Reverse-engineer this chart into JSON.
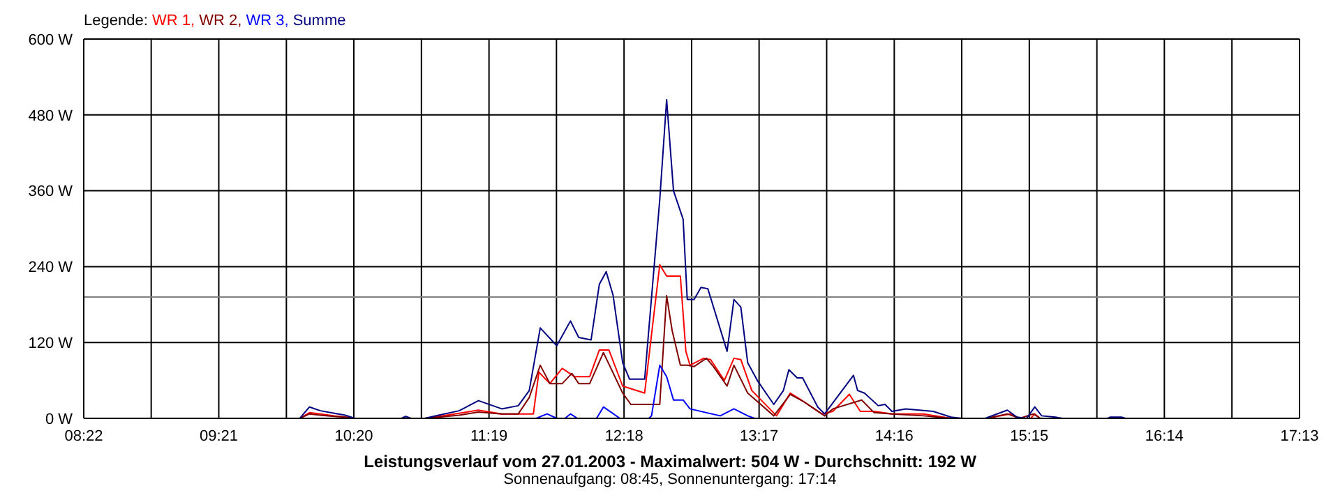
{
  "chart_data": {
    "type": "line",
    "title": "Leistungsverlauf vom 27.01.2003 - Maximalwert: 504 W - Durchschnitt: 192 W",
    "subtitle": "Sonnenaufgang: 08:45, Sonnenuntergang: 17:14",
    "legend_title": "Legende:",
    "legend": "top left",
    "grid": true,
    "marker": "none",
    "line_style": "solid",
    "xlim": [
      8.367,
      17.217
    ],
    "xticks": [
      {
        "value": 8.367,
        "label": "08:22"
      },
      {
        "value": 8.858,
        "label": null
      },
      {
        "value": 9.35,
        "label": "09:21"
      },
      {
        "value": 9.842,
        "label": null
      },
      {
        "value": 10.333,
        "label": "10:20"
      },
      {
        "value": 10.825,
        "label": null
      },
      {
        "value": 11.317,
        "label": "11:19"
      },
      {
        "value": 11.808,
        "label": null
      },
      {
        "value": 12.3,
        "label": "12:18"
      },
      {
        "value": 12.792,
        "label": null
      },
      {
        "value": 13.283,
        "label": "13:17"
      },
      {
        "value": 13.775,
        "label": null
      },
      {
        "value": 14.267,
        "label": "14:16"
      },
      {
        "value": 14.758,
        "label": null
      },
      {
        "value": 15.25,
        "label": "15:15"
      },
      {
        "value": 15.742,
        "label": null
      },
      {
        "value": 16.233,
        "label": "16:14"
      },
      {
        "value": 16.725,
        "label": null
      },
      {
        "value": 17.217,
        "label": "17:13"
      }
    ],
    "ylim": [
      0,
      600
    ],
    "yticks": [
      {
        "value": 0,
        "label": "0 W"
      },
      {
        "value": 120,
        "label": "120 W"
      },
      {
        "value": 240,
        "label": "240 W"
      },
      {
        "value": 360,
        "label": "360 W"
      },
      {
        "value": 480,
        "label": "480 W"
      },
      {
        "value": 600,
        "label": "600 W"
      }
    ],
    "ref_lines": [
      {
        "axis": "y",
        "value": 192,
        "color": "#808080"
      }
    ],
    "series": [
      {
        "name": "WR 1,",
        "color": "#ff0000",
        "x": [
          9.84,
          9.94,
          10.01,
          10.09,
          10.19,
          10.27,
          10.34,
          10.85,
          10.95,
          11.1,
          11.24,
          11.41,
          11.64,
          11.68,
          11.76,
          11.85,
          11.94,
          12.05,
          12.12,
          12.19,
          12.29,
          12.45,
          12.56,
          12.61,
          12.71,
          12.75,
          12.78,
          12.88,
          12.93,
          13.03,
          13.1,
          13.15,
          13.23,
          13.41,
          13.51,
          13.59,
          13.74,
          13.82,
          13.94,
          14.02,
          14.12,
          14.25,
          14.48,
          14.68,
          14.94,
          15.11,
          15.18,
          15.26,
          15.29,
          15.33
        ],
        "values": [
          0,
          0,
          9,
          7,
          4,
          2,
          0,
          0,
          3,
          8,
          13,
          7,
          7,
          73,
          55,
          79,
          66,
          66,
          108,
          108,
          51,
          40,
          243,
          225,
          225,
          106,
          84,
          95,
          93,
          60,
          95,
          93,
          44,
          4,
          40,
          29,
          7,
          11,
          38,
          11,
          11,
          7,
          7,
          0,
          0,
          7,
          0,
          0,
          7,
          0
        ]
      },
      {
        "name": "WR 2,",
        "color": "#800000",
        "x": [
          9.84,
          9.94,
          10.01,
          10.09,
          10.19,
          10.27,
          10.34,
          10.85,
          10.95,
          11.1,
          11.24,
          11.41,
          11.53,
          11.61,
          11.69,
          11.76,
          11.85,
          11.92,
          11.97,
          12.05,
          12.15,
          12.29,
          12.35,
          12.56,
          12.61,
          12.65,
          12.71,
          12.76,
          12.81,
          12.9,
          12.95,
          13.05,
          13.1,
          13.2,
          13.39,
          13.51,
          13.61,
          13.76,
          13.82,
          14.03,
          14.12,
          14.25,
          14.48,
          14.68,
          14.94,
          15.09,
          15.18,
          15.28,
          15.33
        ],
        "values": [
          0,
          0,
          7,
          5,
          3,
          2,
          0,
          0,
          2,
          5,
          10,
          7,
          7,
          33,
          84,
          55,
          55,
          71,
          55,
          55,
          104,
          40,
          22,
          22,
          194,
          139,
          84,
          84,
          82,
          95,
          82,
          51,
          84,
          40,
          4,
          38,
          26,
          4,
          15,
          29,
          9,
          7,
          4,
          0,
          0,
          7,
          0,
          7,
          0
        ]
      },
      {
        "name": "WR 3,",
        "color": "#0000ff",
        "x": [
          11.66,
          11.74,
          11.81,
          11.87,
          11.91,
          11.96,
          12.1,
          12.15,
          12.27,
          12.48,
          12.5,
          12.56,
          12.61,
          12.66,
          12.73,
          12.78,
          13.0,
          13.1,
          13.2,
          13.25
        ],
        "values": [
          0,
          7,
          0,
          0,
          7,
          0,
          0,
          18,
          0,
          0,
          4,
          84,
          66,
          29,
          29,
          15,
          4,
          15,
          4,
          0
        ]
      },
      {
        "name": "Summe",
        "color": "#000080",
        "x": [
          9.84,
          9.94,
          10.01,
          10.09,
          10.19,
          10.27,
          10.34,
          10.68,
          10.71,
          10.75,
          10.85,
          10.95,
          11.1,
          11.24,
          11.41,
          11.53,
          11.61,
          11.69,
          11.81,
          11.91,
          11.97,
          12.06,
          12.12,
          12.17,
          12.22,
          12.29,
          12.34,
          12.45,
          12.56,
          12.61,
          12.66,
          12.73,
          12.76,
          12.81,
          12.86,
          12.91,
          13.05,
          13.1,
          13.15,
          13.2,
          13.27,
          13.39,
          13.46,
          13.5,
          13.56,
          13.6,
          13.71,
          13.76,
          13.97,
          14.0,
          14.05,
          14.15,
          14.2,
          14.25,
          14.35,
          14.55,
          14.68,
          14.76,
          14.93,
          15.09,
          15.16,
          15.23,
          15.29,
          15.34,
          15.44,
          15.49,
          15.82,
          15.84,
          15.92,
          15.95
        ],
        "values": [
          0,
          0,
          18,
          12,
          8,
          5,
          0,
          0,
          3,
          0,
          0,
          5,
          12,
          28,
          15,
          20,
          44,
          143,
          115,
          154,
          128,
          124,
          212,
          232,
          195,
          88,
          62,
          62,
          346,
          504,
          360,
          315,
          188,
          188,
          207,
          205,
          106,
          188,
          176,
          88,
          60,
          22,
          44,
          77,
          64,
          64,
          18,
          7,
          68,
          44,
          40,
          20,
          22,
          11,
          15,
          11,
          2,
          0,
          0,
          13,
          2,
          0,
          18,
          4,
          2,
          0,
          0,
          2,
          2,
          0
        ]
      }
    ]
  }
}
